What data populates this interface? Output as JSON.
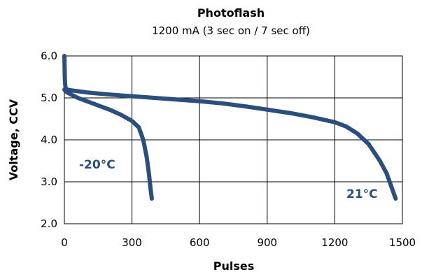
{
  "chart_data": {
    "type": "line",
    "title": "Photoflash",
    "subtitle": "1200 mA (3 sec on / 7 sec off)",
    "xlabel": "Pulses",
    "ylabel": "Voltage, CCV",
    "xlim": [
      0,
      1500
    ],
    "ylim": [
      2.0,
      6.0
    ],
    "xticks": [
      0,
      300,
      600,
      900,
      1200,
      1500
    ],
    "yticks": [
      2.0,
      3.0,
      4.0,
      5.0,
      6.0
    ],
    "xtick_labels": [
      "0",
      "300",
      "600",
      "900",
      "1200",
      "1500"
    ],
    "ytick_labels": [
      "2.0",
      "3.0",
      "4.0",
      "5.0",
      "6.0"
    ],
    "grid": true,
    "line_color": "#2a4f7f",
    "series": [
      {
        "name": "-20°C",
        "x": [
          0,
          2,
          5,
          10,
          30,
          60,
          100,
          150,
          200,
          250,
          300,
          330,
          350,
          365,
          375,
          382,
          388
        ],
        "y": [
          5.2,
          5.18,
          5.16,
          5.14,
          5.08,
          5.0,
          4.92,
          4.82,
          4.72,
          4.6,
          4.45,
          4.3,
          4.0,
          3.6,
          3.2,
          2.85,
          2.6
        ]
      },
      {
        "name": "21°C",
        "x": [
          0,
          2,
          3,
          5,
          10,
          30,
          100,
          200,
          300,
          400,
          500,
          600,
          700,
          800,
          900,
          1000,
          1100,
          1200,
          1250,
          1300,
          1350,
          1400,
          1430,
          1450,
          1470
        ],
        "y": [
          6.0,
          5.5,
          5.35,
          5.25,
          5.2,
          5.18,
          5.13,
          5.08,
          5.04,
          5.0,
          4.96,
          4.92,
          4.87,
          4.8,
          4.72,
          4.64,
          4.54,
          4.42,
          4.32,
          4.15,
          3.9,
          3.5,
          3.2,
          2.9,
          2.6
        ]
      }
    ]
  }
}
